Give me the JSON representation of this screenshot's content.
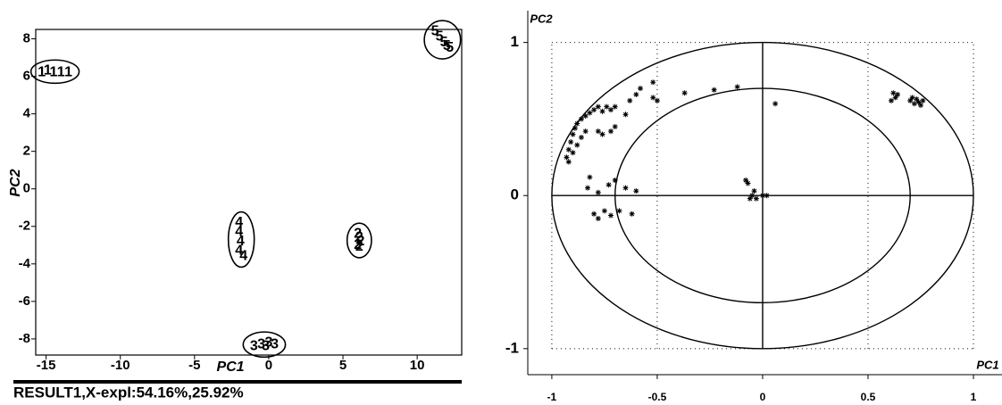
{
  "chart_data": [
    {
      "type": "scatter",
      "xlabel": "PC1",
      "ylabel": "PC2",
      "caption": "RESULT1,X-expl:54.16%,25.92%",
      "xlim": [
        -15.7,
        13.0
      ],
      "ylim": [
        -8.86,
        8.5
      ],
      "xticks": [
        -15,
        -10,
        -5,
        0,
        5,
        10
      ],
      "yticks": [
        -8,
        -6,
        -4,
        -2,
        0,
        2,
        4,
        6,
        8
      ],
      "color": "#000000",
      "series": [
        {
          "name": "1",
          "x": [
            -15.3,
            -14.9,
            -14.5,
            -14.0,
            -13.5
          ],
          "values": [
            6.2,
            6.3,
            6.2,
            6.2,
            6.2
          ]
        },
        {
          "name": "2",
          "x": [
            6.0,
            6.1,
            6.2,
            6.0,
            6.1
          ],
          "values": [
            -2.4,
            -2.6,
            -2.8,
            -3.0,
            -3.1
          ]
        },
        {
          "name": "3",
          "x": [
            -1.0,
            -0.5,
            0.0,
            0.4,
            -0.2
          ],
          "values": [
            -8.4,
            -8.3,
            -8.2,
            -8.3,
            -8.4
          ]
        },
        {
          "name": "4",
          "x": [
            -2.0,
            -2.0,
            -1.9,
            -2.0,
            -1.7
          ],
          "values": [
            -1.8,
            -2.3,
            -2.8,
            -3.3,
            -3.6
          ]
        },
        {
          "name": "5",
          "x": [
            11.2,
            11.5,
            11.8,
            12.0,
            12.2
          ],
          "values": [
            8.4,
            8.1,
            7.8,
            7.6,
            7.5
          ]
        }
      ]
    },
    {
      "type": "loadings",
      "xlabel": "PC1",
      "ylabel": "PC2",
      "xlim": [
        -1.114,
        1.127
      ],
      "ylim": [
        -1.17,
        1.19
      ],
      "xticks": [
        -1,
        -0.5,
        0,
        0.5,
        1
      ],
      "yticks": [
        -1,
        0,
        1
      ],
      "reference_circles": [
        1,
        0.7
      ],
      "color": "#000000",
      "x": [
        -0.93,
        -0.92,
        -0.91,
        -0.9,
        -0.89,
        -0.88,
        -0.86,
        -0.84,
        -0.82,
        -0.8,
        -0.92,
        -0.9,
        -0.88,
        -0.86,
        -0.84,
        -0.78,
        -0.76,
        -0.74,
        -0.72,
        -0.7,
        -0.78,
        -0.76,
        -0.72,
        -0.7,
        -0.65,
        -0.63,
        -0.6,
        -0.58,
        -0.52,
        -0.5,
        -0.52,
        -0.37,
        -0.23,
        -0.12,
        0.06,
        -0.82,
        -0.83,
        -0.78,
        -0.73,
        -0.7,
        -0.8,
        -0.78,
        -0.75,
        -0.72,
        -0.68,
        -0.62,
        -0.65,
        -0.6,
        -0.08,
        -0.07,
        -0.05,
        -0.04,
        -0.06,
        -0.03,
        0.0,
        0.02,
        0.62,
        0.63,
        0.61,
        0.64,
        0.7,
        0.72,
        0.74,
        0.75,
        0.73,
        0.71,
        0.76
      ],
      "values": [
        0.25,
        0.3,
        0.35,
        0.4,
        0.44,
        0.47,
        0.5,
        0.52,
        0.54,
        0.56,
        0.22,
        0.28,
        0.33,
        0.38,
        0.42,
        0.58,
        0.55,
        0.58,
        0.56,
        0.58,
        0.42,
        0.4,
        0.42,
        0.45,
        0.53,
        0.62,
        0.66,
        0.7,
        0.64,
        0.62,
        0.74,
        0.67,
        0.69,
        0.71,
        0.6,
        0.12,
        0.05,
        0.02,
        0.07,
        0.1,
        -0.12,
        -0.15,
        -0.1,
        -0.13,
        -0.1,
        -0.12,
        0.05,
        0.03,
        0.1,
        0.08,
        0.0,
        0.03,
        -0.02,
        -0.02,
        0.0,
        0.0,
        0.67,
        0.64,
        0.62,
        0.66,
        0.62,
        0.6,
        0.61,
        0.59,
        0.63,
        0.64,
        0.62
      ]
    }
  ]
}
